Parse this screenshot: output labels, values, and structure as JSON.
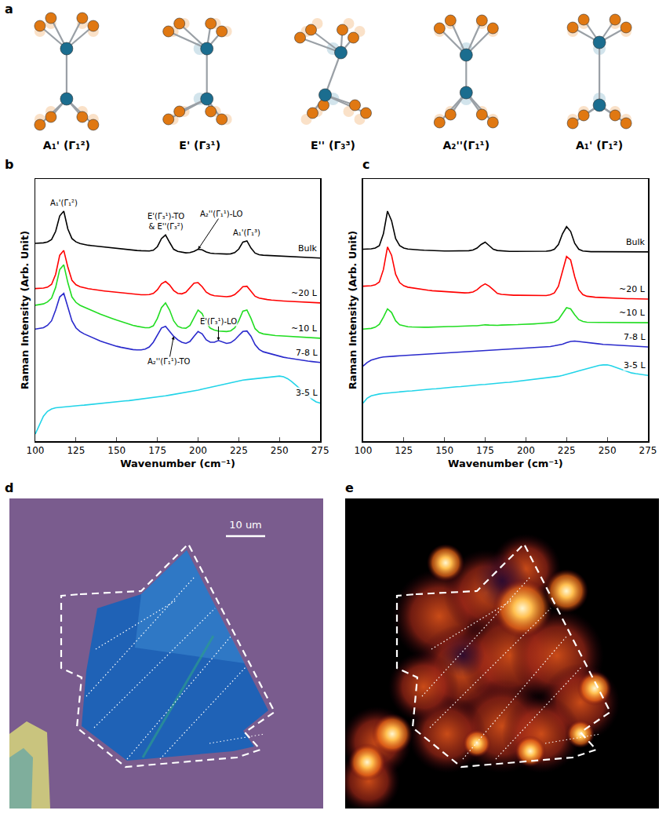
{
  "panel_a": {
    "label": "a",
    "modes": [
      "A₁' (Γ₁²)",
      "E' (Γ₃¹)",
      "E'' (Γ₃³)",
      "A₂''(Γ₁¹)",
      "A₁' (Γ₁²)"
    ]
  },
  "chart_data": [
    {
      "label": "b",
      "type": "line",
      "x_label": "Wavenumber (cm⁻¹)",
      "y_label": "Raman Intensity (Arb. Unit)",
      "xlim": [
        100,
        275
      ],
      "xticks": [
        100,
        125,
        150,
        175,
        200,
        225,
        250,
        275
      ],
      "ylim": [
        0,
        110
      ],
      "tick_labels": "x",
      "grid": false,
      "x": [
        100,
        102.5,
        105,
        107.5,
        110,
        112.5,
        115,
        117.5,
        120,
        122.5,
        125,
        127.5,
        130,
        132.5,
        135,
        137.5,
        140,
        142.5,
        145,
        147.5,
        150,
        152.5,
        155,
        157.5,
        160,
        162.5,
        165,
        167.5,
        170,
        172.5,
        175,
        177.5,
        180,
        182.5,
        185,
        187.5,
        190,
        192.5,
        195,
        197.5,
        200,
        202.5,
        205,
        207.5,
        210,
        212.5,
        215,
        217.5,
        220,
        222.5,
        225,
        227.5,
        230,
        232.5,
        235,
        237.5,
        240,
        242.5,
        245,
        247.5,
        250,
        252.5,
        255,
        257.5,
        260,
        262.5,
        265,
        267.5,
        270,
        272.5,
        275
      ],
      "series": [
        {
          "name": "Bulk",
          "color": "#000000",
          "values": [
            83.0,
            83.0,
            83.2,
            83.6,
            84.6,
            88.0,
            94.5,
            96.5,
            89.0,
            85.0,
            83.6,
            82.9,
            82.5,
            82.2,
            82.0,
            81.8,
            81.6,
            81.4,
            81.2,
            81.0,
            80.8,
            80.6,
            80.5,
            80.3,
            80.2,
            80.0,
            79.9,
            79.8,
            79.8,
            80.1,
            81.6,
            85.0,
            86.5,
            83.4,
            80.5,
            79.6,
            79.2,
            79.0,
            79.1,
            79.6,
            80.5,
            80.3,
            79.4,
            78.9,
            78.7,
            78.6,
            78.5,
            78.5,
            78.6,
            79.1,
            80.6,
            83.5,
            84.0,
            81.0,
            78.9,
            78.2,
            78.0,
            77.9,
            77.8,
            77.7,
            77.6,
            77.5,
            77.4,
            77.3,
            77.2,
            77.1,
            77.0,
            77.0,
            76.9,
            76.8,
            76.8
          ]
        },
        {
          "name": "~20 L",
          "color": "#ff0000",
          "values": [
            64.0,
            64.0,
            64.2,
            64.6,
            65.8,
            70.0,
            78.0,
            80.0,
            73.0,
            67.5,
            65.6,
            64.8,
            64.3,
            64.0,
            63.7,
            63.4,
            63.2,
            63.0,
            62.8,
            62.6,
            62.4,
            62.2,
            62.0,
            61.8,
            61.6,
            61.5,
            61.4,
            61.4,
            61.5,
            62.0,
            63.5,
            66.0,
            67.0,
            65.5,
            63.2,
            62.0,
            61.8,
            62.5,
            64.5,
            66.3,
            66.5,
            64.8,
            62.5,
            61.5,
            61.0,
            60.8,
            60.6,
            60.6,
            60.8,
            61.5,
            63.0,
            64.8,
            65.0,
            63.0,
            60.8,
            60.0,
            59.6,
            59.4,
            59.2,
            59.0,
            58.9,
            58.8,
            58.7,
            58.6,
            58.5,
            58.4,
            58.3,
            58.2,
            58.1,
            58.0,
            58.0
          ]
        },
        {
          "name": "~10 L",
          "color": "#22dd22",
          "values": [
            57.0,
            57.2,
            57.6,
            58.4,
            60.0,
            64.5,
            72.0,
            74.0,
            66.5,
            60.5,
            58.2,
            57.0,
            56.2,
            55.4,
            54.7,
            54.0,
            53.3,
            52.6,
            52.0,
            51.4,
            50.8,
            50.2,
            49.6,
            49.1,
            48.6,
            48.2,
            47.8,
            47.6,
            47.6,
            48.4,
            51.5,
            56.0,
            58.0,
            55.0,
            50.5,
            48.2,
            47.5,
            47.4,
            48.5,
            52.0,
            55.0,
            53.5,
            49.5,
            47.4,
            46.6,
            46.2,
            46.0,
            46.0,
            46.3,
            47.5,
            50.5,
            54.5,
            55.0,
            51.5,
            47.2,
            45.6,
            45.0,
            44.7,
            44.5,
            44.3,
            44.2,
            44.1,
            44.0,
            43.9,
            43.8,
            43.7,
            43.6,
            43.5,
            43.4,
            43.3,
            43.2
          ]
        },
        {
          "name": "7-8 L",
          "color": "#2a2acc",
          "values": [
            47.0,
            47.2,
            47.6,
            48.6,
            50.5,
            55.0,
            60.5,
            62.0,
            56.5,
            50.5,
            47.5,
            46.0,
            45.0,
            44.2,
            43.4,
            42.6,
            42.0,
            41.4,
            40.8,
            40.2,
            39.8,
            39.4,
            39.0,
            38.7,
            38.4,
            38.3,
            38.3,
            38.6,
            39.5,
            41.5,
            44.5,
            47.5,
            48.2,
            46.0,
            44.0,
            42.5,
            41.5,
            41.0,
            41.8,
            44.0,
            46.0,
            45.0,
            42.5,
            41.5,
            41.5,
            42.2,
            41.5,
            41.0,
            41.3,
            42.5,
            44.3,
            46.0,
            46.2,
            44.0,
            40.5,
            38.5,
            37.5,
            37.0,
            36.5,
            36.0,
            35.6,
            35.2,
            34.9,
            34.6,
            34.3,
            34.0,
            33.8,
            33.6,
            33.4,
            33.2,
            33.0
          ]
        },
        {
          "name": "3-5 L",
          "color": "#22d4e8",
          "values": [
            3.0,
            7.0,
            10.5,
            12.5,
            13.5,
            14.0,
            14.2,
            14.3,
            14.4,
            14.6,
            14.8,
            15.0,
            15.1,
            15.3,
            15.4,
            15.6,
            15.8,
            16.0,
            16.2,
            16.3,
            16.5,
            16.7,
            16.9,
            17.0,
            17.2,
            17.4,
            17.6,
            17.8,
            18.0,
            18.3,
            18.5,
            18.8,
            19.0,
            19.3,
            19.6,
            19.8,
            20.0,
            20.3,
            20.6,
            21.0,
            21.4,
            21.8,
            22.2,
            22.6,
            23.0,
            23.4,
            23.8,
            24.2,
            24.6,
            25.0,
            25.3,
            25.6,
            25.8,
            26.0,
            26.2,
            26.4,
            26.6,
            26.8,
            27.0,
            27.2,
            27.3,
            27.0,
            26.2,
            25.0,
            23.5,
            22.0,
            20.5,
            19.0,
            17.6,
            16.5,
            16.0
          ]
        }
      ],
      "annotations": [
        {
          "text": "A₁'(Γ₁²)",
          "x": 117.5,
          "y": 96.5,
          "arrow": false
        },
        {
          "text": "E'(Γ₃¹)-TO & E''(Γ₃²)",
          "x": 180,
          "y": 86.5,
          "arrow": false
        },
        {
          "text": "A₂''(Γ₁¹)-LO",
          "x": 200,
          "y": 80.5,
          "arrow": true
        },
        {
          "text": "A₁'(Γ₁³)",
          "x": 230,
          "y": 84.0,
          "arrow": false
        },
        {
          "text": "E'(Γ₃¹)-LO",
          "x": 212.5,
          "y": 42.2,
          "arrow": true
        },
        {
          "text": "A₂''(Γ₁¹)-TO",
          "x": 185,
          "y": 44.0,
          "arrow": true
        }
      ]
    },
    {
      "label": "c",
      "type": "line",
      "x_label": "Wavenumber (cm⁻¹)",
      "y_label": "Raman Intensity (Arb. Unit)",
      "xlim": [
        100,
        275
      ],
      "xticks": [
        100,
        125,
        150,
        175,
        200,
        225,
        250,
        275
      ],
      "ylim": [
        0,
        110
      ],
      "tick_labels": "x",
      "grid": false,
      "x": [
        100,
        102.5,
        105,
        107.5,
        110,
        112.5,
        115,
        117.5,
        120,
        122.5,
        125,
        127.5,
        130,
        132.5,
        135,
        137.5,
        140,
        142.5,
        145,
        147.5,
        150,
        152.5,
        155,
        157.5,
        160,
        162.5,
        165,
        167.5,
        170,
        172.5,
        175,
        177.5,
        180,
        182.5,
        185,
        187.5,
        190,
        192.5,
        195,
        197.5,
        200,
        202.5,
        205,
        207.5,
        210,
        212.5,
        215,
        217.5,
        220,
        222.5,
        225,
        227.5,
        230,
        232.5,
        235,
        237.5,
        240,
        242.5,
        245,
        247.5,
        250,
        252.5,
        255,
        257.5,
        260,
        262.5,
        265,
        267.5,
        270,
        272.5,
        275
      ],
      "series": [
        {
          "name": "Bulk",
          "color": "#000000",
          "values": [
            80.5,
            80.5,
            80.7,
            81.0,
            82.0,
            87.0,
            96.5,
            92.5,
            85.0,
            82.0,
            81.0,
            80.6,
            80.4,
            80.3,
            80.2,
            80.1,
            80.0,
            80.0,
            79.9,
            79.9,
            79.8,
            79.8,
            79.8,
            79.8,
            79.8,
            79.8,
            79.9,
            80.2,
            81.0,
            82.5,
            83.5,
            82.0,
            80.5,
            80.0,
            79.8,
            79.7,
            79.6,
            79.6,
            79.6,
            79.6,
            79.6,
            79.6,
            79.6,
            79.6,
            79.6,
            79.7,
            79.9,
            80.5,
            82.5,
            87.0,
            90.0,
            88.0,
            83.0,
            80.5,
            79.8,
            79.6,
            79.5,
            79.5,
            79.5,
            79.5,
            79.4,
            79.4,
            79.4,
            79.4,
            79.4,
            79.4,
            79.4,
            79.4,
            79.4,
            79.4,
            79.4
          ]
        },
        {
          "name": "~20 L",
          "color": "#ff0000",
          "values": [
            65.0,
            65.0,
            65.2,
            65.6,
            66.8,
            72.0,
            81.5,
            78.0,
            70.0,
            66.5,
            65.2,
            64.6,
            64.3,
            64.0,
            63.7,
            63.5,
            63.3,
            63.1,
            63.0,
            62.8,
            62.7,
            62.5,
            62.4,
            62.3,
            62.2,
            62.2,
            62.3,
            62.6,
            63.5,
            65.0,
            66.0,
            65.0,
            63.5,
            62.0,
            61.6,
            61.4,
            61.3,
            61.2,
            61.2,
            61.2,
            61.1,
            61.1,
            61.0,
            61.0,
            61.0,
            61.1,
            61.4,
            62.2,
            65.0,
            71.5,
            77.5,
            76.0,
            69.0,
            63.5,
            61.5,
            60.8,
            60.5,
            60.4,
            60.3,
            60.2,
            60.1,
            60.0,
            60.0,
            59.9,
            59.9,
            59.8,
            59.8,
            59.7,
            59.7,
            59.6,
            59.6
          ]
        },
        {
          "name": "~10 L",
          "color": "#22dd22",
          "values": [
            47.0,
            47.1,
            47.3,
            47.8,
            49.0,
            52.0,
            55.5,
            54.0,
            50.5,
            48.8,
            48.3,
            48.0,
            47.9,
            47.8,
            47.8,
            47.8,
            47.8,
            47.9,
            47.9,
            48.0,
            48.0,
            48.1,
            48.1,
            48.2,
            48.2,
            48.3,
            48.3,
            48.4,
            48.4,
            48.6,
            48.8,
            48.7,
            48.6,
            48.6,
            48.7,
            48.7,
            48.8,
            48.8,
            48.9,
            49.0,
            49.0,
            49.1,
            49.2,
            49.3,
            49.4,
            49.5,
            49.7,
            50.0,
            51.0,
            53.5,
            56.0,
            55.5,
            53.0,
            51.0,
            50.2,
            49.9,
            49.8,
            49.8,
            49.8,
            49.8,
            49.8,
            49.8,
            49.8,
            49.8,
            49.8,
            49.8,
            49.7,
            49.7,
            49.7,
            49.7,
            49.7
          ]
        },
        {
          "name": "7-8 L",
          "color": "#2a2acc",
          "values": [
            31.5,
            33.0,
            34.0,
            34.6,
            35.0,
            35.3,
            35.5,
            35.6,
            35.7,
            35.8,
            35.9,
            36.0,
            36.1,
            36.2,
            36.3,
            36.4,
            36.5,
            36.6,
            36.7,
            36.8,
            36.9,
            37.0,
            37.1,
            37.2,
            37.3,
            37.4,
            37.5,
            37.6,
            37.7,
            37.8,
            37.9,
            38.0,
            38.1,
            38.2,
            38.3,
            38.4,
            38.5,
            38.6,
            38.7,
            38.8,
            38.9,
            39.0,
            39.1,
            39.2,
            39.3,
            39.5,
            39.7,
            40.0,
            40.3,
            40.7,
            41.3,
            41.8,
            42.0,
            41.8,
            41.5,
            41.2,
            41.0,
            40.8,
            40.7,
            40.6,
            40.5,
            40.4,
            40.3,
            40.2,
            40.1,
            40.0,
            39.9,
            39.8,
            39.7,
            39.6,
            39.5
          ]
        },
        {
          "name": "3-5 L",
          "color": "#22d4e8",
          "values": [
            16.0,
            18.0,
            19.0,
            19.5,
            19.8,
            20.0,
            20.2,
            20.4,
            20.5,
            20.7,
            20.8,
            21.0,
            21.1,
            21.3,
            21.4,
            21.6,
            21.7,
            21.9,
            22.0,
            22.2,
            22.3,
            22.5,
            22.6,
            22.8,
            22.9,
            23.1,
            23.2,
            23.4,
            23.5,
            23.7,
            23.8,
            24.0,
            24.1,
            24.3,
            24.4,
            24.6,
            24.7,
            24.9,
            25.0,
            25.2,
            25.4,
            25.6,
            25.8,
            26.0,
            26.2,
            26.4,
            26.6,
            26.9,
            27.2,
            27.6,
            28.0,
            28.5,
            29.0,
            29.5,
            30.0,
            30.5,
            31.0,
            31.5,
            31.8,
            32.0,
            32.0,
            31.6,
            31.0,
            30.3,
            29.6,
            29.0,
            28.6,
            28.3,
            28.0,
            27.8,
            27.6
          ]
        }
      ],
      "annotations": []
    }
  ],
  "panel_d": {
    "label": "d",
    "scale_bar": "10 um"
  },
  "panel_e": {
    "label": "e"
  }
}
